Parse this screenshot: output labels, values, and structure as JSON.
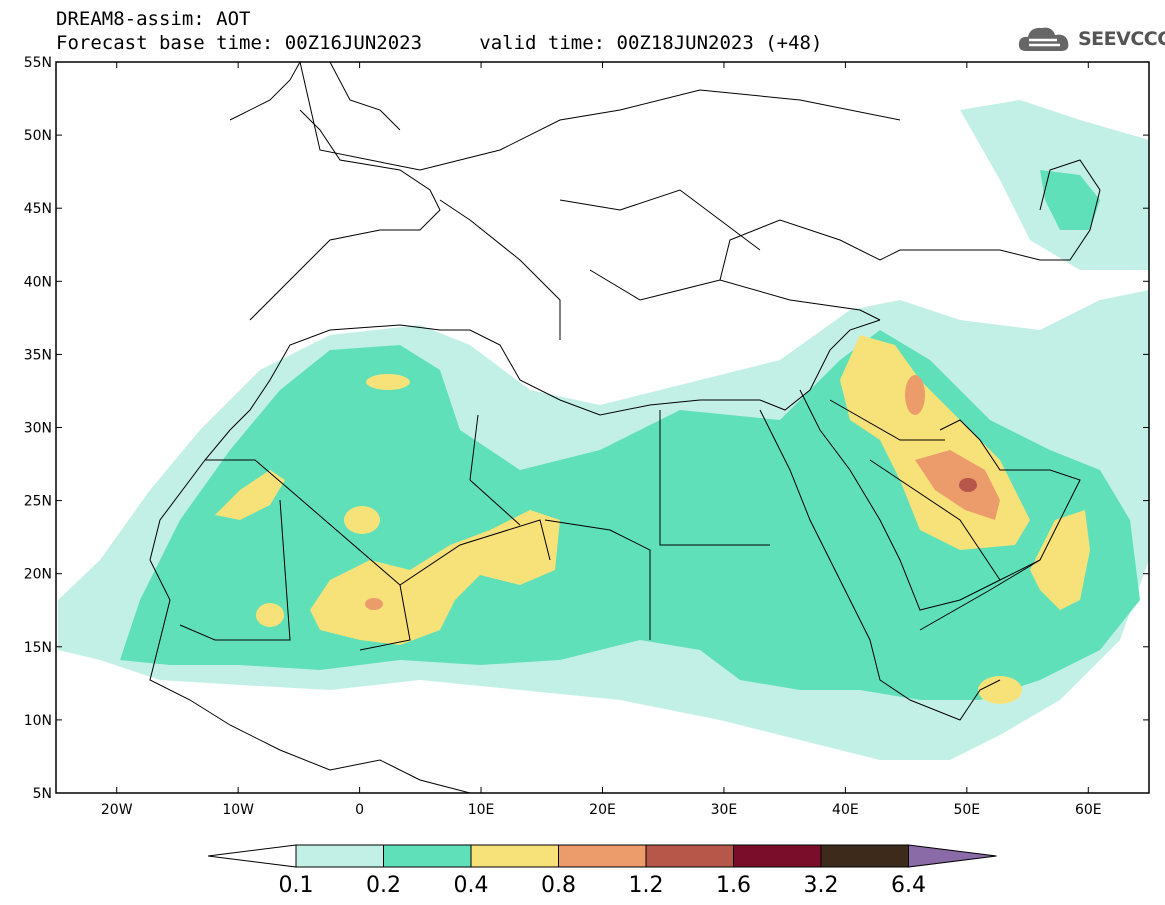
{
  "header": {
    "title": "DREAM8-assim: AOT",
    "base_time": "Forecast base time: 00Z16JUN2023",
    "valid_time": "valid time: 00Z18JUN2023 (+48)"
  },
  "logo": {
    "text": "SEEVCCC",
    "icon": "cloud-icon"
  },
  "map": {
    "lon_range": [
      -25,
      65
    ],
    "lat_range": [
      5,
      55
    ],
    "lat_ticks": [
      "55N",
      "50N",
      "45N",
      "40N",
      "35N",
      "30N",
      "25N",
      "20N",
      "15N",
      "10N",
      "5N"
    ],
    "lon_ticks": [
      "20W",
      "10W",
      "0",
      "10E",
      "20E",
      "30E",
      "40E",
      "50E",
      "60E"
    ]
  },
  "colorbar": {
    "labels": [
      "0.1",
      "0.2",
      "0.4",
      "0.8",
      "1.2",
      "1.6",
      "3.2",
      "6.4"
    ],
    "colors": [
      "#c3f0e6",
      "#5fe0b8",
      "#f7e27a",
      "#ec9b6b",
      "#b6574a",
      "#7a0e2a",
      "#3d2a1b",
      "#8a6aa7"
    ]
  }
}
